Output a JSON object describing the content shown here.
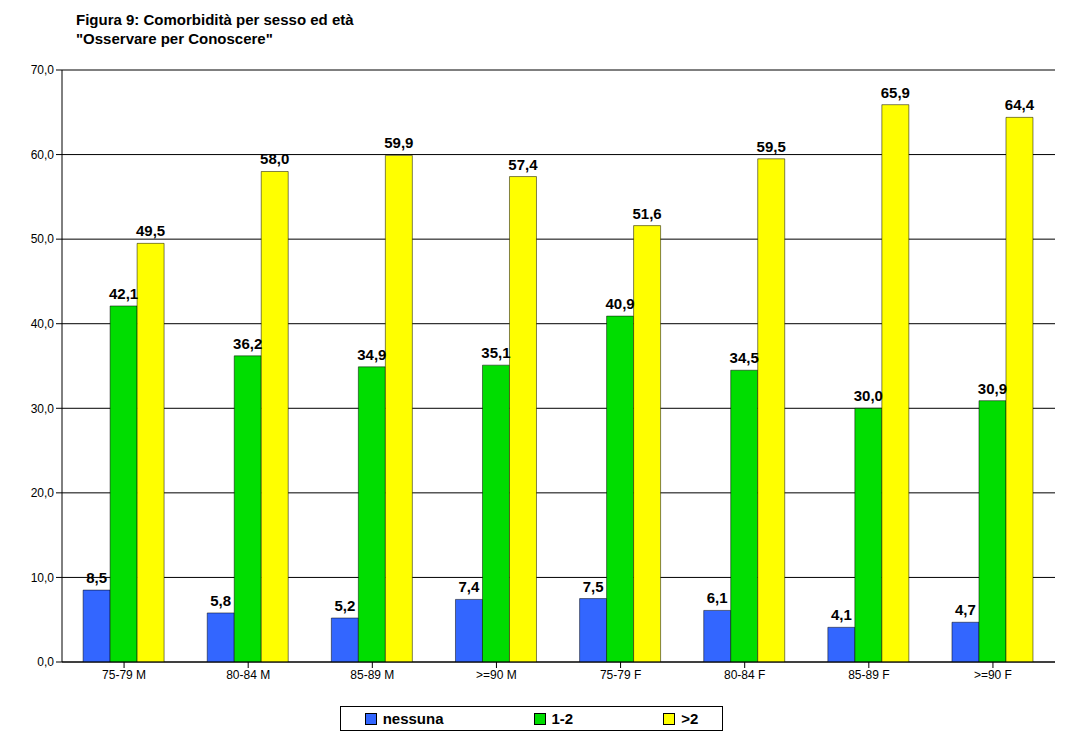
{
  "chart_data": {
    "type": "bar",
    "title": "Figura 9: Comorbidità per sesso ed età",
    "subtitle": "\"Osservare per Conoscere\"",
    "categories": [
      "75-79 M",
      "80-84 M",
      "85-89 M",
      ">=90 M",
      "75-79 F",
      "80-84 F",
      "85-89 F",
      ">=90 F"
    ],
    "series": [
      {
        "name": "nessuna",
        "color": "#3366ff",
        "values": [
          8.5,
          5.8,
          5.2,
          7.4,
          7.5,
          6.1,
          4.1,
          4.7
        ],
        "value_labels": [
          "8,5",
          "5,8",
          "5,2",
          "7,4",
          "7,5",
          "6,1",
          "4,1",
          "4,7"
        ]
      },
      {
        "name": "1-2",
        "color": "#00dd00",
        "values": [
          42.1,
          36.2,
          34.9,
          35.1,
          40.9,
          34.5,
          30.0,
          30.9
        ],
        "value_labels": [
          "42,1",
          "36,2",
          "34,9",
          "35,1",
          "40,9",
          "34,5",
          "30,0",
          "30,9"
        ]
      },
      {
        "name": ">2",
        "color": "#ffff00",
        "values": [
          49.5,
          58.0,
          59.9,
          57.4,
          51.6,
          59.5,
          65.9,
          64.4
        ],
        "value_labels": [
          "49,5",
          "58,0",
          "59,9",
          "57,4",
          "51,6",
          "59,5",
          "65,9",
          "64,4"
        ]
      }
    ],
    "ylim": [
      0,
      70
    ],
    "yticks": [
      {
        "value": 0,
        "label": "0,0"
      },
      {
        "value": 10,
        "label": "10,0"
      },
      {
        "value": 20,
        "label": "20,0"
      },
      {
        "value": 30,
        "label": "30,0"
      },
      {
        "value": 40,
        "label": "40,0"
      },
      {
        "value": 50,
        "label": "50,0"
      },
      {
        "value": 60,
        "label": "60,0"
      },
      {
        "value": 70,
        "label": "70,0"
      }
    ],
    "grid": true,
    "legend": "bottom",
    "data_labels": true
  }
}
